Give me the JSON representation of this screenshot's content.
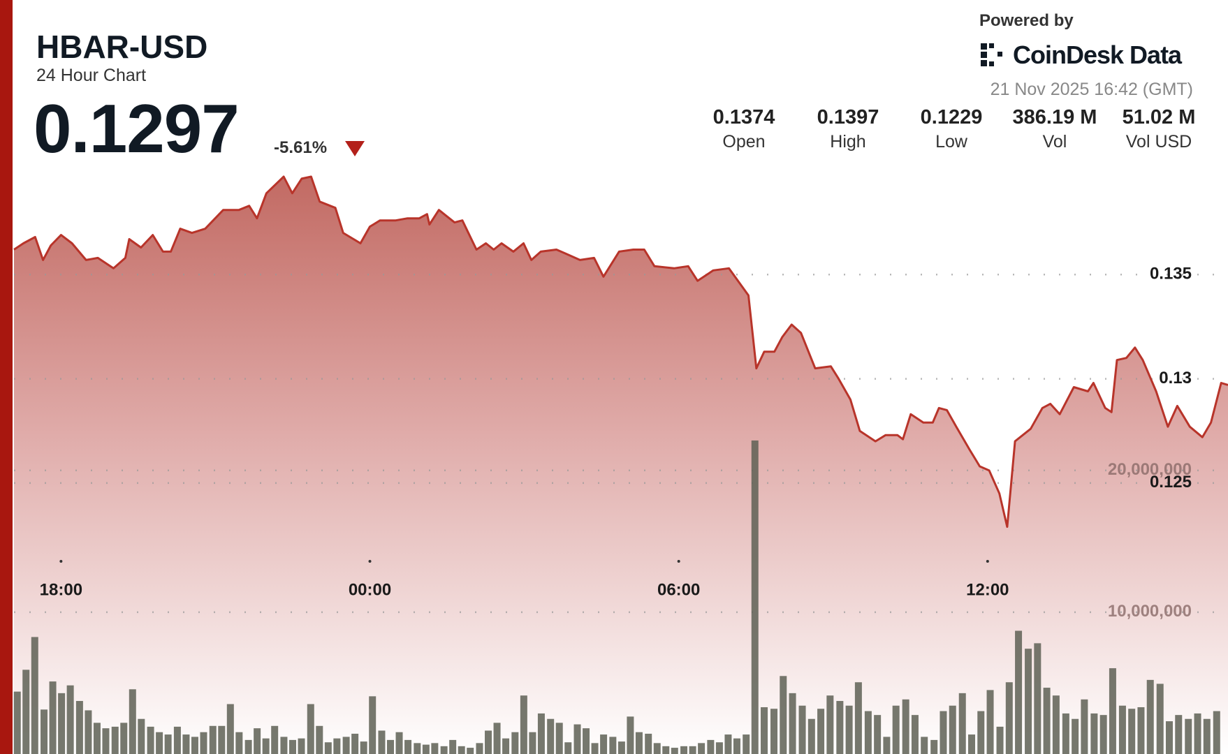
{
  "header": {
    "symbol": "HBAR-USD",
    "subtitle": "24 Hour Chart",
    "price": "0.1297",
    "change": "-5.61%",
    "powered_by": "Powered by",
    "brand": "CoinDesk Data",
    "timestamp": "21 Nov 2025 16:42 (GMT)",
    "stats": [
      {
        "value": "0.1374",
        "label": "Open"
      },
      {
        "value": "0.1397",
        "label": "High"
      },
      {
        "value": "0.1229",
        "label": "Low"
      },
      {
        "value": "386.19 M",
        "label": "Vol"
      },
      {
        "value": "51.02 M",
        "label": "Vol USD"
      }
    ]
  },
  "chart_data": {
    "type": "area",
    "xlim": [
      17.086,
      40.67
    ],
    "xticks": [
      {
        "value": 18,
        "label": "18:00"
      },
      {
        "value": 24,
        "label": "00:00"
      },
      {
        "value": 30,
        "label": "06:00"
      },
      {
        "value": 36,
        "label": "12:00"
      }
    ],
    "ylim": [
      0.112,
      0.14
    ],
    "yticks": [
      0.125,
      0.13,
      0.135
    ],
    "y2lim": [
      0,
      41160000
    ],
    "y2ticks": [
      {
        "value": 10000000,
        "label": "10,000,000"
      },
      {
        "value": 20000000,
        "label": "20,000,000"
      }
    ],
    "grid": true,
    "series": [
      {
        "type": "area",
        "color": "#b8342a",
        "x": [
          17.086,
          17.269,
          17.497,
          17.65,
          17.802,
          18.0,
          18.213,
          18.487,
          18.716,
          19.02,
          19.249,
          19.325,
          19.553,
          19.782,
          19.98,
          20.132,
          20.315,
          20.543,
          20.802,
          21.152,
          21.457,
          21.655,
          21.807,
          21.99,
          22.325,
          22.492,
          22.675,
          22.858,
          23.025,
          23.33,
          23.482,
          23.817,
          24.0,
          24.198,
          24.502,
          24.731,
          24.959,
          25.111,
          25.157,
          25.34,
          25.645,
          25.797,
          26.071,
          26.254,
          26.406,
          26.558,
          26.787,
          26.985,
          27.137,
          27.32,
          27.624,
          27.807,
          28.081,
          28.355,
          28.538,
          28.842,
          29.117,
          29.33,
          29.528,
          29.909,
          30.183,
          30.365,
          30.67,
          30.974,
          31.355,
          31.508,
          31.66,
          31.858,
          32.01,
          32.193,
          32.375,
          32.65,
          32.954,
          33.106,
          33.335,
          33.517,
          33.822,
          34.02,
          34.248,
          34.355,
          34.507,
          34.751,
          34.934,
          35.055,
          35.208,
          35.391,
          35.65,
          35.848,
          36.03,
          36.228,
          36.38,
          36.533,
          36.837,
          37.065,
          37.218,
          37.401,
          37.675,
          37.949,
          38.056,
          38.284,
          38.406,
          38.512,
          38.695,
          38.863,
          39.015,
          39.274,
          39.502,
          39.685,
          39.928,
          40.172,
          40.339,
          40.537,
          40.67
        ],
        "values": [
          0.1362,
          0.1365,
          0.1368,
          0.1357,
          0.1364,
          0.1369,
          0.1365,
          0.1357,
          0.1358,
          0.1353,
          0.1358,
          0.1367,
          0.1363,
          0.1369,
          0.1361,
          0.1361,
          0.1372,
          0.137,
          0.1372,
          0.1381,
          0.1381,
          0.1383,
          0.1377,
          0.1389,
          0.1397,
          0.1389,
          0.1396,
          0.1397,
          0.1385,
          0.1382,
          0.137,
          0.1365,
          0.1373,
          0.1376,
          0.1376,
          0.1377,
          0.1377,
          0.1379,
          0.1374,
          0.1381,
          0.1375,
          0.1376,
          0.1362,
          0.1365,
          0.1362,
          0.1365,
          0.1361,
          0.1365,
          0.1357,
          0.1361,
          0.1362,
          0.136,
          0.1357,
          0.1358,
          0.1349,
          0.1361,
          0.1362,
          0.1362,
          0.1354,
          0.1353,
          0.1354,
          0.1347,
          0.1352,
          0.1353,
          0.134,
          0.1305,
          0.1313,
          0.1313,
          0.132,
          0.1326,
          0.1322,
          0.1305,
          0.1306,
          0.13,
          0.129,
          0.1275,
          0.127,
          0.1273,
          0.1273,
          0.1271,
          0.1283,
          0.1279,
          0.1279,
          0.1286,
          0.1285,
          0.1277,
          0.1266,
          0.1258,
          0.1256,
          0.1245,
          0.1229,
          0.127,
          0.1276,
          0.1286,
          0.1288,
          0.1283,
          0.1296,
          0.1294,
          0.1298,
          0.1286,
          0.1284,
          0.1309,
          0.131,
          0.1315,
          0.1309,
          0.1294,
          0.1277,
          0.1287,
          0.1277,
          0.1272,
          0.1279,
          0.1298,
          0.1297
        ]
      },
      {
        "type": "bar",
        "axis": "y2",
        "color": "#5e6055",
        "x": [
          17.15,
          17.32,
          17.49,
          17.67,
          17.84,
          18.01,
          18.18,
          18.36,
          18.53,
          18.7,
          18.87,
          19.05,
          19.22,
          19.39,
          19.56,
          19.74,
          19.91,
          20.08,
          20.26,
          20.43,
          20.6,
          20.77,
          20.95,
          21.12,
          21.29,
          21.46,
          21.64,
          21.81,
          21.98,
          22.15,
          22.33,
          22.5,
          22.67,
          22.85,
          23.02,
          23.19,
          23.36,
          23.54,
          23.71,
          23.88,
          24.05,
          24.23,
          24.4,
          24.57,
          24.74,
          24.92,
          25.09,
          25.26,
          25.44,
          25.61,
          25.78,
          25.95,
          26.13,
          26.3,
          26.47,
          26.64,
          26.82,
          26.99,
          27.16,
          27.33,
          27.51,
          27.68,
          27.85,
          28.03,
          28.2,
          28.37,
          28.54,
          28.72,
          28.89,
          29.06,
          29.23,
          29.41,
          29.58,
          29.75,
          29.92,
          30.1,
          30.27,
          30.44,
          30.62,
          30.79,
          30.96,
          31.13,
          31.31,
          31.48,
          31.66,
          31.85,
          32.03,
          32.21,
          32.4,
          32.58,
          32.76,
          32.94,
          33.13,
          33.31,
          33.49,
          33.68,
          33.86,
          34.04,
          34.22,
          34.41,
          34.59,
          34.77,
          34.96,
          35.14,
          35.32,
          35.51,
          35.69,
          35.87,
          36.05,
          36.24,
          36.42,
          36.6,
          36.79,
          36.97,
          37.15,
          37.33,
          37.52,
          37.7,
          37.88,
          38.07,
          38.25,
          38.43,
          38.62,
          38.8,
          38.98,
          39.16,
          39.35,
          39.53,
          39.71,
          39.9,
          40.08,
          40.26,
          40.45
        ],
        "values": [
          4400000,
          5940000,
          8250000,
          3135000,
          5115000,
          4290000,
          4840000,
          3740000,
          3080000,
          2200000,
          1815000,
          1925000,
          2200000,
          4565000,
          2475000,
          1925000,
          1540000,
          1375000,
          1925000,
          1375000,
          1210000,
          1540000,
          1980000,
          1980000,
          3520000,
          1540000,
          990000,
          1815000,
          1100000,
          1980000,
          1210000,
          990000,
          1100000,
          3520000,
          1980000,
          825000,
          1100000,
          1210000,
          1430000,
          880000,
          4070000,
          1650000,
          990000,
          1540000,
          990000,
          770000,
          660000,
          770000,
          550000,
          990000,
          550000,
          440000,
          770000,
          1650000,
          2200000,
          1100000,
          1540000,
          4125000,
          1540000,
          2860000,
          2475000,
          2200000,
          825000,
          2090000,
          1815000,
          770000,
          1375000,
          1210000,
          880000,
          2640000,
          1540000,
          1430000,
          770000,
          550000,
          440000,
          550000,
          550000,
          770000,
          990000,
          825000,
          1375000,
          1100000,
          1375000,
          22110000,
          3300000,
          3190000,
          5500000,
          4290000,
          3410000,
          2475000,
          3190000,
          4125000,
          3740000,
          3410000,
          5060000,
          3025000,
          2750000,
          1210000,
          3410000,
          3850000,
          2750000,
          1210000,
          990000,
          3025000,
          3410000,
          4290000,
          1375000,
          3025000,
          4510000,
          1925000,
          5060000,
          8690000,
          7425000,
          7810000,
          4675000,
          4125000,
          2860000,
          2475000,
          3850000,
          2860000,
          2750000,
          6050000,
          3410000,
          3190000,
          3300000,
          5225000,
          4950000,
          2310000,
          2750000,
          2475000,
          2860000,
          2475000,
          3025000
        ]
      }
    ]
  }
}
